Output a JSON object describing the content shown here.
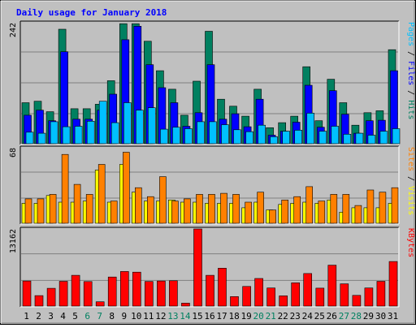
{
  "chart_data": {
    "type": "bar",
    "title": "Daily usage for January 2018",
    "categories": [
      "1",
      "2",
      "3",
      "4",
      "5",
      "6",
      "7",
      "8",
      "9",
      "10",
      "11",
      "12",
      "13",
      "14",
      "15",
      "16",
      "17",
      "18",
      "19",
      "20",
      "21",
      "22",
      "23",
      "24",
      "25",
      "26",
      "27",
      "28",
      "29",
      "30",
      "31"
    ],
    "weekend_days": [
      "6",
      "7",
      "13",
      "14",
      "20",
      "21",
      "27",
      "28"
    ],
    "panels": [
      {
        "ymax_label": "242",
        "ylim": [
          0,
          242
        ],
        "right_label_parts": [
          {
            "text": "Pages",
            "color": "#00c0ff"
          },
          {
            "text": " / ",
            "color": "#000000"
          },
          {
            "text": "Files",
            "color": "#0000ff"
          },
          {
            "text": " / ",
            "color": "#000000"
          },
          {
            "text": "Hits",
            "color": "#008060"
          }
        ],
        "series": [
          {
            "name": "Hits",
            "color": "#008060",
            "values": [
              82,
              85,
              64,
              229,
              70,
              70,
              79,
              126,
              240,
              240,
              205,
              146,
              109,
              57,
              125,
              225,
              89,
              75,
              55,
              109,
              32,
              42,
              55,
              154,
              46,
              129,
              82,
              37,
              62,
              66,
              188
            ]
          },
          {
            "name": "Files",
            "color": "#0000ff",
            "values": [
              57,
              67,
              46,
              184,
              49,
              49,
              67,
              99,
              208,
              235,
              158,
              112,
              82,
              35,
              62,
              158,
              49,
              60,
              34,
              89,
              17,
              25,
              43,
              117,
              33,
              106,
              59,
              21,
              46,
              47,
              146
            ]
          },
          {
            "name": "Pages",
            "color": "#00c0ff",
            "values": [
              23,
              21,
              44,
              34,
              35,
              45,
              85,
              42,
              82,
              67,
              72,
              29,
              33,
              30,
              44,
              44,
              38,
              28,
              24,
              37,
              14,
              25,
              27,
              61,
              25,
              35,
              19,
              21,
              17,
              25,
              30
            ]
          }
        ]
      },
      {
        "ymax_label": "68",
        "ylim": [
          0,
          68
        ],
        "right_label_parts": [
          {
            "text": "Sites",
            "color": "#ff8000"
          },
          {
            "text": " / ",
            "color": "#000000"
          },
          {
            "text": "Visits",
            "color": "#ffff00"
          }
        ],
        "series": [
          {
            "name": "Visits",
            "color": "#ffff00",
            "values": [
              18,
              18,
              25,
              19,
              19,
              20,
              48,
              19,
              53,
              28,
              20,
              20,
              21,
              19,
              19,
              18,
              18,
              18,
              14,
              19,
              12,
              17,
              18,
              19,
              18,
              21,
              10,
              14,
              14,
              14,
              18
            ]
          },
          {
            "name": "Sites",
            "color": "#ff8000",
            "values": [
              22,
              22,
              26,
              62,
              35,
              26,
              53,
              20,
              64,
              32,
              24,
              42,
              20,
              22,
              26,
              26,
              27,
              26,
              19,
              28,
              12,
              21,
              24,
              33,
              20,
              26,
              26,
              16,
              30,
              28,
              32
            ]
          }
        ]
      },
      {
        "ymax_label": "13162",
        "ylim": [
          0,
          13162
        ],
        "right_label_parts": [
          {
            "text": "KBytes",
            "color": "#ff0000"
          }
        ],
        "series": [
          {
            "name": "KBytes",
            "color": "#ff0000",
            "values": [
              4275,
              1788,
              3038,
              4229,
              5255,
              4185,
              741,
              4955,
              5899,
              5795,
              4195,
              4275,
              4327,
              500,
              13162,
              5255,
              6470,
              1625,
              3349,
              4711,
              3091,
              1748,
              3983,
              5549,
              3062,
              6980,
              3802,
              1825,
              3091,
              4229,
              7603
            ]
          }
        ]
      }
    ]
  }
}
